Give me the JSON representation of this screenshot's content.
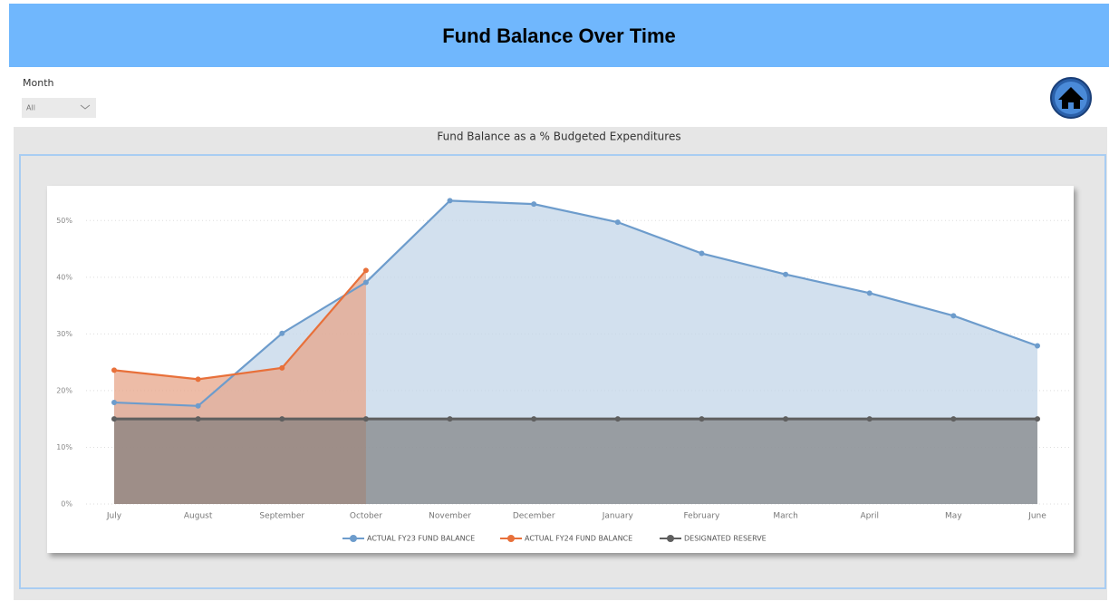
{
  "header": {
    "title": "Fund Balance Over Time"
  },
  "filter": {
    "label": "Month",
    "value": "All"
  },
  "chart_data": {
    "type": "line",
    "title": "Fund Balance as a % Budgeted Expenditures",
    "categories": [
      "July",
      "August",
      "September",
      "October",
      "November",
      "December",
      "January",
      "February",
      "March",
      "April",
      "May",
      "June"
    ],
    "series": [
      {
        "name": "ACTUAL FY23 FUND BALANCE",
        "color": "#6d9ccc",
        "area_color": "#c3d5e8",
        "values": [
          17.9,
          17.3,
          30.1,
          39.1,
          53.5,
          52.9,
          49.7,
          44.2,
          40.5,
          37.2,
          33.2,
          27.9
        ]
      },
      {
        "name": "ACTUAL FY24 FUND BALANCE",
        "color": "#e8703a",
        "area_color": "#e7a58a",
        "values": [
          23.6,
          22.0,
          24.0,
          41.2,
          null,
          null,
          null,
          null,
          null,
          null,
          null,
          null
        ]
      },
      {
        "name": "DESIGNATED RESERVE",
        "color": "#5f5f5f",
        "area_color": "#7a7a7a",
        "values": [
          15,
          15,
          15,
          15,
          15,
          15,
          15,
          15,
          15,
          15,
          15,
          15
        ]
      }
    ],
    "ylim": [
      0,
      55
    ],
    "yticks": [
      {
        "value": 0,
        "label": "0%"
      },
      {
        "value": 10,
        "label": "10%"
      },
      {
        "value": 20,
        "label": "20%"
      },
      {
        "value": 30,
        "label": "30%"
      },
      {
        "value": 40,
        "label": "40%"
      },
      {
        "value": 50,
        "label": "50%"
      }
    ],
    "grid": true,
    "legend": "bottom"
  }
}
